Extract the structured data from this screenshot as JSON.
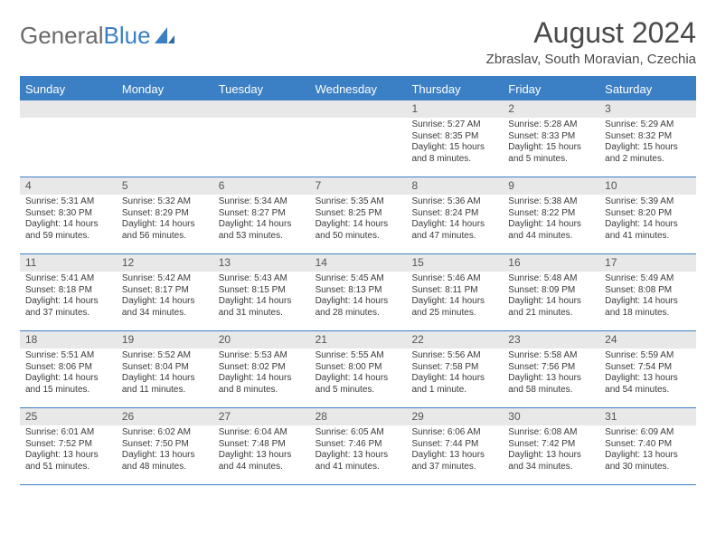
{
  "logo": {
    "text1": "General",
    "text2": "Blue"
  },
  "title": "August 2024",
  "location": "Zbraslav, South Moravian, Czechia",
  "colors": {
    "accent": "#3b7fc4",
    "dayHeaderBg": "#e8e8e8",
    "text": "#3a3a3a",
    "titleText": "#4a4a4a"
  },
  "daysOfWeek": [
    "Sunday",
    "Monday",
    "Tuesday",
    "Wednesday",
    "Thursday",
    "Friday",
    "Saturday"
  ],
  "weeks": [
    [
      null,
      null,
      null,
      null,
      {
        "n": "1",
        "sr": "Sunrise: 5:27 AM",
        "ss": "Sunset: 8:35 PM",
        "dl1": "Daylight: 15 hours",
        "dl2": "and 8 minutes."
      },
      {
        "n": "2",
        "sr": "Sunrise: 5:28 AM",
        "ss": "Sunset: 8:33 PM",
        "dl1": "Daylight: 15 hours",
        "dl2": "and 5 minutes."
      },
      {
        "n": "3",
        "sr": "Sunrise: 5:29 AM",
        "ss": "Sunset: 8:32 PM",
        "dl1": "Daylight: 15 hours",
        "dl2": "and 2 minutes."
      }
    ],
    [
      {
        "n": "4",
        "sr": "Sunrise: 5:31 AM",
        "ss": "Sunset: 8:30 PM",
        "dl1": "Daylight: 14 hours",
        "dl2": "and 59 minutes."
      },
      {
        "n": "5",
        "sr": "Sunrise: 5:32 AM",
        "ss": "Sunset: 8:29 PM",
        "dl1": "Daylight: 14 hours",
        "dl2": "and 56 minutes."
      },
      {
        "n": "6",
        "sr": "Sunrise: 5:34 AM",
        "ss": "Sunset: 8:27 PM",
        "dl1": "Daylight: 14 hours",
        "dl2": "and 53 minutes."
      },
      {
        "n": "7",
        "sr": "Sunrise: 5:35 AM",
        "ss": "Sunset: 8:25 PM",
        "dl1": "Daylight: 14 hours",
        "dl2": "and 50 minutes."
      },
      {
        "n": "8",
        "sr": "Sunrise: 5:36 AM",
        "ss": "Sunset: 8:24 PM",
        "dl1": "Daylight: 14 hours",
        "dl2": "and 47 minutes."
      },
      {
        "n": "9",
        "sr": "Sunrise: 5:38 AM",
        "ss": "Sunset: 8:22 PM",
        "dl1": "Daylight: 14 hours",
        "dl2": "and 44 minutes."
      },
      {
        "n": "10",
        "sr": "Sunrise: 5:39 AM",
        "ss": "Sunset: 8:20 PM",
        "dl1": "Daylight: 14 hours",
        "dl2": "and 41 minutes."
      }
    ],
    [
      {
        "n": "11",
        "sr": "Sunrise: 5:41 AM",
        "ss": "Sunset: 8:18 PM",
        "dl1": "Daylight: 14 hours",
        "dl2": "and 37 minutes."
      },
      {
        "n": "12",
        "sr": "Sunrise: 5:42 AM",
        "ss": "Sunset: 8:17 PM",
        "dl1": "Daylight: 14 hours",
        "dl2": "and 34 minutes."
      },
      {
        "n": "13",
        "sr": "Sunrise: 5:43 AM",
        "ss": "Sunset: 8:15 PM",
        "dl1": "Daylight: 14 hours",
        "dl2": "and 31 minutes."
      },
      {
        "n": "14",
        "sr": "Sunrise: 5:45 AM",
        "ss": "Sunset: 8:13 PM",
        "dl1": "Daylight: 14 hours",
        "dl2": "and 28 minutes."
      },
      {
        "n": "15",
        "sr": "Sunrise: 5:46 AM",
        "ss": "Sunset: 8:11 PM",
        "dl1": "Daylight: 14 hours",
        "dl2": "and 25 minutes."
      },
      {
        "n": "16",
        "sr": "Sunrise: 5:48 AM",
        "ss": "Sunset: 8:09 PM",
        "dl1": "Daylight: 14 hours",
        "dl2": "and 21 minutes."
      },
      {
        "n": "17",
        "sr": "Sunrise: 5:49 AM",
        "ss": "Sunset: 8:08 PM",
        "dl1": "Daylight: 14 hours",
        "dl2": "and 18 minutes."
      }
    ],
    [
      {
        "n": "18",
        "sr": "Sunrise: 5:51 AM",
        "ss": "Sunset: 8:06 PM",
        "dl1": "Daylight: 14 hours",
        "dl2": "and 15 minutes."
      },
      {
        "n": "19",
        "sr": "Sunrise: 5:52 AM",
        "ss": "Sunset: 8:04 PM",
        "dl1": "Daylight: 14 hours",
        "dl2": "and 11 minutes."
      },
      {
        "n": "20",
        "sr": "Sunrise: 5:53 AM",
        "ss": "Sunset: 8:02 PM",
        "dl1": "Daylight: 14 hours",
        "dl2": "and 8 minutes."
      },
      {
        "n": "21",
        "sr": "Sunrise: 5:55 AM",
        "ss": "Sunset: 8:00 PM",
        "dl1": "Daylight: 14 hours",
        "dl2": "and 5 minutes."
      },
      {
        "n": "22",
        "sr": "Sunrise: 5:56 AM",
        "ss": "Sunset: 7:58 PM",
        "dl1": "Daylight: 14 hours",
        "dl2": "and 1 minute."
      },
      {
        "n": "23",
        "sr": "Sunrise: 5:58 AM",
        "ss": "Sunset: 7:56 PM",
        "dl1": "Daylight: 13 hours",
        "dl2": "and 58 minutes."
      },
      {
        "n": "24",
        "sr": "Sunrise: 5:59 AM",
        "ss": "Sunset: 7:54 PM",
        "dl1": "Daylight: 13 hours",
        "dl2": "and 54 minutes."
      }
    ],
    [
      {
        "n": "25",
        "sr": "Sunrise: 6:01 AM",
        "ss": "Sunset: 7:52 PM",
        "dl1": "Daylight: 13 hours",
        "dl2": "and 51 minutes."
      },
      {
        "n": "26",
        "sr": "Sunrise: 6:02 AM",
        "ss": "Sunset: 7:50 PM",
        "dl1": "Daylight: 13 hours",
        "dl2": "and 48 minutes."
      },
      {
        "n": "27",
        "sr": "Sunrise: 6:04 AM",
        "ss": "Sunset: 7:48 PM",
        "dl1": "Daylight: 13 hours",
        "dl2": "and 44 minutes."
      },
      {
        "n": "28",
        "sr": "Sunrise: 6:05 AM",
        "ss": "Sunset: 7:46 PM",
        "dl1": "Daylight: 13 hours",
        "dl2": "and 41 minutes."
      },
      {
        "n": "29",
        "sr": "Sunrise: 6:06 AM",
        "ss": "Sunset: 7:44 PM",
        "dl1": "Daylight: 13 hours",
        "dl2": "and 37 minutes."
      },
      {
        "n": "30",
        "sr": "Sunrise: 6:08 AM",
        "ss": "Sunset: 7:42 PM",
        "dl1": "Daylight: 13 hours",
        "dl2": "and 34 minutes."
      },
      {
        "n": "31",
        "sr": "Sunrise: 6:09 AM",
        "ss": "Sunset: 7:40 PM",
        "dl1": "Daylight: 13 hours",
        "dl2": "and 30 minutes."
      }
    ]
  ]
}
